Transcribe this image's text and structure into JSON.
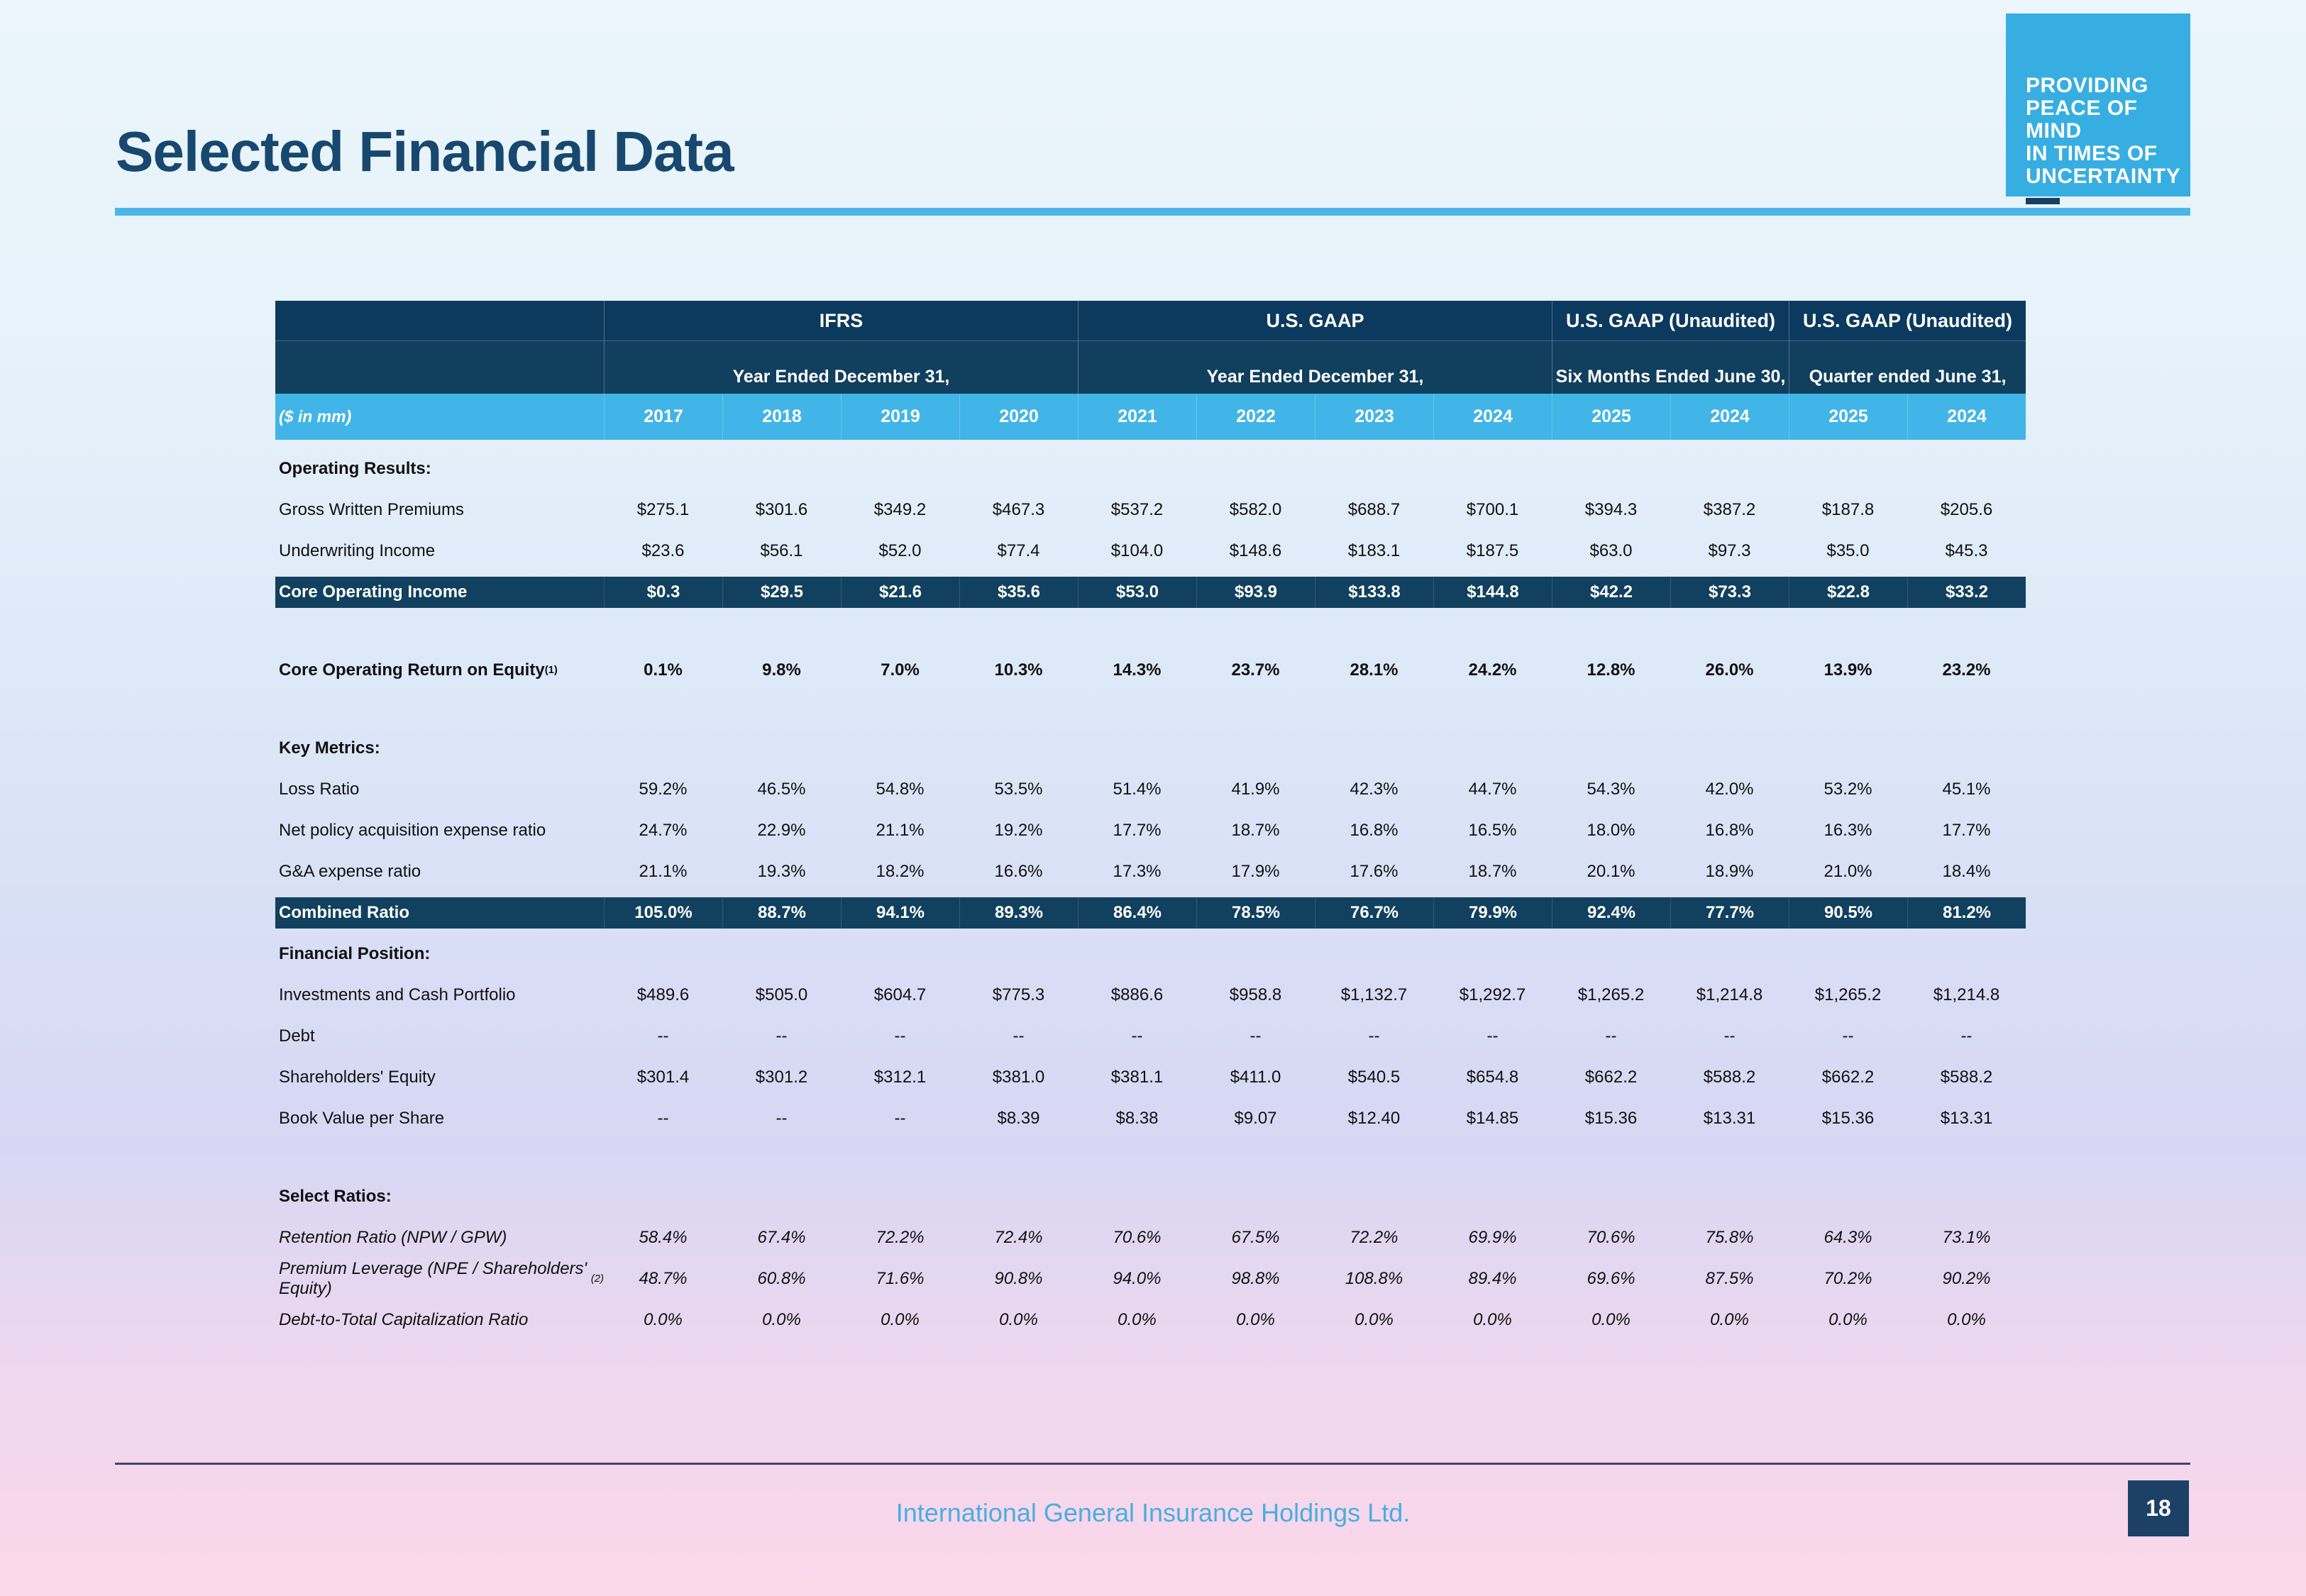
{
  "colors": {
    "title_navy": "#17486F",
    "rule_blue": "#4CB6E8",
    "badge_blue": "#36AEE2",
    "badge_dash_navy": "#173F66",
    "header_navy_top": "#0C3A5E",
    "header_navy_mid": "#113F5E",
    "years_row_blue": "#41B5E7",
    "highlight_row_navy": "#12405F",
    "footer_rule_slate": "#3E4668",
    "footer_brand_blue": "#49AEDE",
    "page_badge_navy": "#1C4066"
  },
  "title": "Selected Financial Data",
  "logo_badge": {
    "lines": [
      "PROVIDING",
      "PEACE OF MIND",
      "IN TIMES OF",
      "UNCERTAINTY"
    ]
  },
  "table": {
    "unit_label": "($ in mm)",
    "column_groups": [
      {
        "standard": "IFRS",
        "period": "Year Ended December 31,",
        "span": 4
      },
      {
        "standard": "U.S. GAAP",
        "period": "Year Ended December 31,",
        "span": 4
      },
      {
        "standard": "U.S. GAAP (Unaudited)",
        "period": "Six Months Ended June 30,",
        "span": 2
      },
      {
        "standard": "U.S. GAAP (Unaudited)",
        "period": "Quarter ended June 31,",
        "span": 2
      }
    ],
    "years": [
      "2017",
      "2018",
      "2019",
      "2020",
      "2021",
      "2022",
      "2023",
      "2024",
      "2025",
      "2024",
      "2025",
      "2024"
    ],
    "rows": [
      {
        "type": "section",
        "label": "Operating Results:"
      },
      {
        "type": "data",
        "label": "Gross Written Premiums",
        "values": [
          "$275.1",
          "$301.6",
          "$349.2",
          "$467.3",
          "$537.2",
          "$582.0",
          "$688.7",
          "$700.1",
          "$394.3",
          "$387.2",
          "$187.8",
          "$205.6"
        ]
      },
      {
        "type": "data",
        "label": "Underwriting Income",
        "values": [
          "$23.6",
          "$56.1",
          "$52.0",
          "$77.4",
          "$104.0",
          "$148.6",
          "$183.1",
          "$187.5",
          "$63.0",
          "$97.3",
          "$35.0",
          "$45.3"
        ]
      },
      {
        "type": "highlight",
        "label": "Core Operating Income",
        "values": [
          "$0.3",
          "$29.5",
          "$21.6",
          "$35.6",
          "$53.0",
          "$93.9",
          "$133.8",
          "$144.8",
          "$42.2",
          "$73.3",
          "$22.8",
          "$33.2"
        ]
      },
      {
        "type": "spacer"
      },
      {
        "type": "data",
        "style": "strong",
        "label": "Core Operating Return on Equity ",
        "sup": "(1)",
        "values": [
          "0.1%",
          "9.8%",
          "7.0%",
          "10.3%",
          "14.3%",
          "23.7%",
          "28.1%",
          "24.2%",
          "12.8%",
          "26.0%",
          "13.9%",
          "23.2%"
        ]
      },
      {
        "type": "spacer"
      },
      {
        "type": "section",
        "label": "Key Metrics:"
      },
      {
        "type": "data",
        "label": "Loss Ratio",
        "values": [
          "59.2%",
          "46.5%",
          "54.8%",
          "53.5%",
          "51.4%",
          "41.9%",
          "42.3%",
          "44.7%",
          "54.3%",
          "42.0%",
          "53.2%",
          "45.1%"
        ]
      },
      {
        "type": "data",
        "label": "Net policy acquisition expense ratio",
        "values": [
          "24.7%",
          "22.9%",
          "21.1%",
          "19.2%",
          "17.7%",
          "18.7%",
          "16.8%",
          "16.5%",
          "18.0%",
          "16.8%",
          "16.3%",
          "17.7%"
        ]
      },
      {
        "type": "data",
        "label": "G&A expense ratio",
        "values": [
          "21.1%",
          "19.3%",
          "18.2%",
          "16.6%",
          "17.3%",
          "17.9%",
          "17.6%",
          "18.7%",
          "20.1%",
          "18.9%",
          "21.0%",
          "18.4%"
        ]
      },
      {
        "type": "highlight",
        "label": "Combined Ratio",
        "values": [
          "105.0%",
          "88.7%",
          "94.1%",
          "89.3%",
          "86.4%",
          "78.5%",
          "76.7%",
          "79.9%",
          "92.4%",
          "77.7%",
          "90.5%",
          "81.2%"
        ]
      },
      {
        "type": "section",
        "label": "Financial Position:"
      },
      {
        "type": "data",
        "label": "Investments and Cash Portfolio",
        "values": [
          "$489.6",
          "$505.0",
          "$604.7",
          "$775.3",
          "$886.6",
          "$958.8",
          "$1,132.7",
          "$1,292.7",
          "$1,265.2",
          "$1,214.8",
          "$1,265.2",
          "$1,214.8"
        ]
      },
      {
        "type": "data",
        "label": "Debt",
        "values": [
          "--",
          "--",
          "--",
          "--",
          "--",
          "--",
          "--",
          "--",
          "--",
          "--",
          "--",
          "--"
        ]
      },
      {
        "type": "data",
        "label": "Shareholders' Equity",
        "values": [
          "$301.4",
          "$301.2",
          "$312.1",
          "$381.0",
          "$381.1",
          "$411.0",
          "$540.5",
          "$654.8",
          "$662.2",
          "$588.2",
          "$662.2",
          "$588.2"
        ]
      },
      {
        "type": "data",
        "label": "Book Value per Share",
        "values": [
          "--",
          "--",
          "--",
          "$8.39",
          "$8.38",
          "$9.07",
          "$12.40",
          "$14.85",
          "$15.36",
          "$13.31",
          "$15.36",
          "$13.31"
        ]
      },
      {
        "type": "spacer"
      },
      {
        "type": "section",
        "label": "Select Ratios:"
      },
      {
        "type": "data",
        "style": "italic",
        "label": "Retention Ratio (NPW / GPW)",
        "values": [
          "58.4%",
          "67.4%",
          "72.2%",
          "72.4%",
          "70.6%",
          "67.5%",
          "72.2%",
          "69.9%",
          "70.6%",
          "75.8%",
          "64.3%",
          "73.1%"
        ]
      },
      {
        "type": "data",
        "style": "italic",
        "label": "Premium Leverage (NPE / Shareholders' Equity)",
        "sup": "(2)",
        "values": [
          "48.7%",
          "60.8%",
          "71.6%",
          "90.8%",
          "94.0%",
          "98.8%",
          "108.8%",
          "89.4%",
          "69.6%",
          "87.5%",
          "70.2%",
          "90.2%"
        ]
      },
      {
        "type": "data",
        "style": "italic",
        "label": "Debt-to-Total Capitalization Ratio",
        "values": [
          "0.0%",
          "0.0%",
          "0.0%",
          "0.0%",
          "0.0%",
          "0.0%",
          "0.0%",
          "0.0%",
          "0.0%",
          "0.0%",
          "0.0%",
          "0.0%"
        ]
      }
    ]
  },
  "footer": {
    "company": "International General Insurance Holdings Ltd.",
    "page_number": "18"
  }
}
